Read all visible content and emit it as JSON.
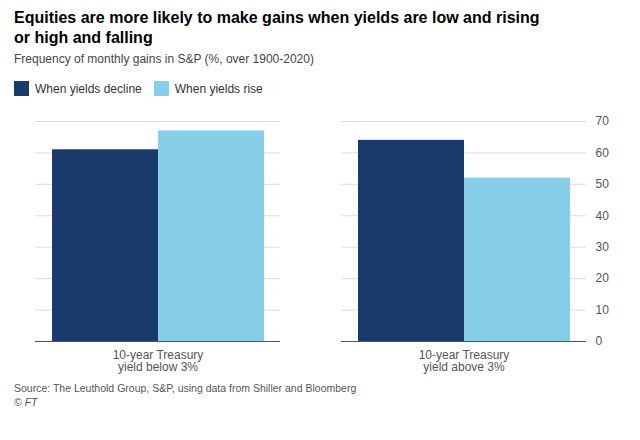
{
  "chart_data": {
    "type": "bar",
    "title": "Equities are more likely to make gains when yields are low and rising\nor high and falling",
    "subtitle": "Frequency of monthly gains in S&P (%, over 1900-2020)",
    "categories": [
      "10-year Treasury\nyield below 3%",
      "10-year Treasury\nyield above 3%"
    ],
    "series": [
      {
        "name": "When yields decline",
        "color": "#1a3a6b",
        "values": [
          61,
          64
        ]
      },
      {
        "name": "When yields rise",
        "color": "#87ceeb",
        "values": [
          67,
          52
        ]
      }
    ],
    "ylim": [
      0,
      70
    ],
    "yticks": [
      0,
      10,
      20,
      30,
      40,
      50,
      60,
      70
    ],
    "grid": true,
    "legend": "top",
    "annotations": [
      "Source: The Leuthold Group, S&P, using data from Shiller and Bloomberg",
      "© FT"
    ]
  }
}
